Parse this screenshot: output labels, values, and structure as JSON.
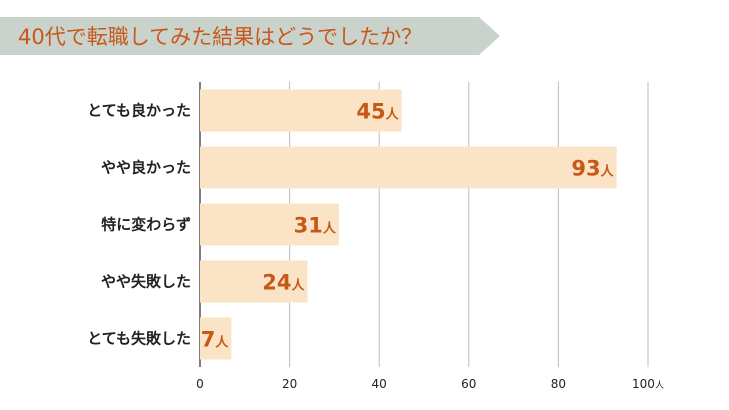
{
  "title": "40代で転職してみた結果はどうでしたか？",
  "colors": {
    "banner": "#c9d3cc",
    "bar": "#fbe3c5",
    "value_text": "#c7581a",
    "grid": "#bdbdbd",
    "axis": "#555555"
  },
  "chart_data": {
    "type": "bar",
    "orientation": "horizontal",
    "categories": [
      "とても良かった",
      "やや良かった",
      "特に変わらず",
      "やや失敗した",
      "とても失敗した"
    ],
    "values": [
      45,
      93,
      31,
      24,
      7
    ],
    "value_unit": "人",
    "xlim": [
      0,
      100
    ],
    "xticks": [
      0,
      20,
      40,
      60,
      80,
      100
    ],
    "x_unit": "人",
    "grid": true
  }
}
